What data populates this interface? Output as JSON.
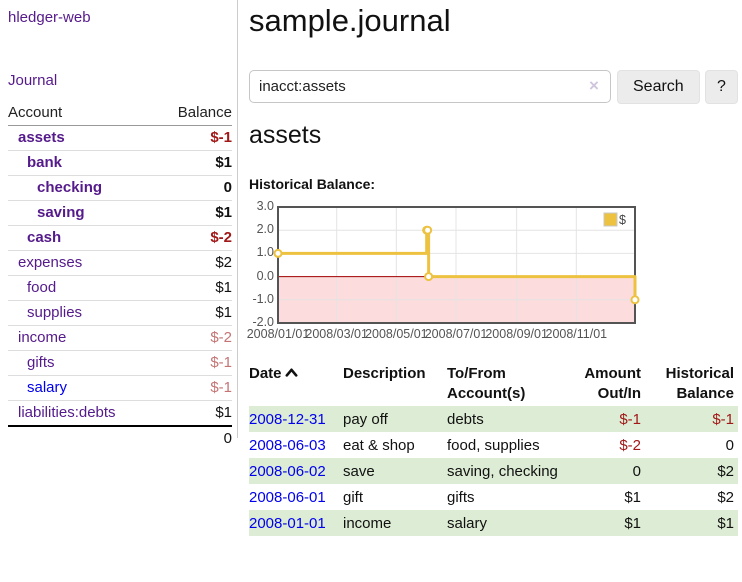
{
  "sidebar": {
    "brand": "hledger-web",
    "nav_journal": "Journal",
    "table": {
      "headers": {
        "account": "Account",
        "balance": "Balance"
      },
      "rows": [
        {
          "name": "assets",
          "balance": "$-1",
          "depth_cls": "d1",
          "link_cls": "",
          "row_cls": "emph",
          "bal_cls": "neg"
        },
        {
          "name": "bank",
          "balance": "$1",
          "depth_cls": "d2",
          "link_cls": "",
          "row_cls": "emph",
          "bal_cls": ""
        },
        {
          "name": "checking",
          "balance": "0",
          "depth_cls": "d3",
          "link_cls": "",
          "row_cls": "emph",
          "bal_cls": ""
        },
        {
          "name": "saving",
          "balance": "$1",
          "depth_cls": "d3",
          "link_cls": "",
          "row_cls": "emph",
          "bal_cls": ""
        },
        {
          "name": "cash",
          "balance": "$-2",
          "depth_cls": "d2",
          "link_cls": "",
          "row_cls": "emph",
          "bal_cls": "neg"
        },
        {
          "name": "expenses",
          "balance": "$2",
          "depth_cls": "d1",
          "link_cls": "",
          "row_cls": "",
          "bal_cls": ""
        },
        {
          "name": "food",
          "balance": "$1",
          "depth_cls": "d2",
          "link_cls": "",
          "row_cls": "",
          "bal_cls": ""
        },
        {
          "name": "supplies",
          "balance": "$1",
          "depth_cls": "d2",
          "link_cls": "",
          "row_cls": "",
          "bal_cls": ""
        },
        {
          "name": "income",
          "balance": "$-2",
          "depth_cls": "d1",
          "link_cls": "",
          "row_cls": "",
          "bal_cls": "soft"
        },
        {
          "name": "gifts",
          "balance": "$-1",
          "depth_cls": "d2",
          "link_cls": "",
          "row_cls": "",
          "bal_cls": "soft"
        },
        {
          "name": "salary",
          "balance": "$-1",
          "depth_cls": "d2",
          "link_cls": "fresh",
          "row_cls": "",
          "bal_cls": "soft"
        },
        {
          "name": "liabilities:debts",
          "balance": "$1",
          "depth_cls": "d1",
          "link_cls": "",
          "row_cls": "",
          "bal_cls": ""
        }
      ],
      "total": "0"
    }
  },
  "header": {
    "title": "sample.journal"
  },
  "search": {
    "value": "inacct:assets",
    "clear_icon": "×",
    "button_label": "Search",
    "help_label": "?"
  },
  "account_page": {
    "title": "assets"
  },
  "chart_data": {
    "type": "line",
    "step": true,
    "title": "Historical Balance:",
    "series": [
      {
        "name": "$",
        "color": "#EDC240",
        "points": [
          [
            "2008-01-01",
            1
          ],
          [
            "2008-06-01",
            2
          ],
          [
            "2008-06-02",
            2
          ],
          [
            "2008-06-03",
            0
          ],
          [
            "2008-12-31",
            -1
          ]
        ]
      }
    ],
    "xlim": [
      "2008-01-01",
      "2008-12-31"
    ],
    "ylim": [
      -2,
      3
    ],
    "x_ticks": [
      "2008/01/01",
      "2008/03/01",
      "2008/05/01",
      "2008/07/01",
      "2008/09/01",
      "2008/11/01"
    ],
    "y_ticks": [
      "3.0",
      "2.0",
      "1.0",
      "0.0",
      "-1.0",
      "-2.0"
    ],
    "grid": true,
    "legend": {
      "label": "$",
      "position": "top-right"
    },
    "negative_fill": "#fcdcdc",
    "zero_line_color": "#a40000",
    "plot_border_color": "#545454",
    "grid_color": "#e4e4e4"
  },
  "register": {
    "headers": {
      "date": "Date",
      "description": "Description",
      "accounts": "To/From Account(s)",
      "amount": "Amount Out/In",
      "balance": "Historical Balance"
    },
    "rows": [
      {
        "date": "2008-12-31",
        "description": "pay off",
        "accounts": "debts",
        "amount": "$-1",
        "balance": "$-1",
        "row_cls": "alt",
        "amount_cls": "neg",
        "balance_cls": "neg"
      },
      {
        "date": "2008-06-03",
        "description": "eat & shop",
        "accounts": "food, supplies",
        "amount": "$-2",
        "balance": "0",
        "row_cls": "",
        "amount_cls": "neg",
        "balance_cls": ""
      },
      {
        "date": "2008-06-02",
        "description": "save",
        "accounts": "saving, checking",
        "amount": "0",
        "balance": "$2",
        "row_cls": "alt",
        "amount_cls": "",
        "balance_cls": ""
      },
      {
        "date": "2008-06-01",
        "description": "gift",
        "accounts": "gifts",
        "amount": "$1",
        "balance": "$2",
        "row_cls": "",
        "amount_cls": "",
        "balance_cls": ""
      },
      {
        "date": "2008-01-01",
        "description": "income",
        "accounts": "salary",
        "amount": "$1",
        "balance": "$1",
        "row_cls": "alt",
        "amount_cls": "",
        "balance_cls": ""
      }
    ]
  }
}
